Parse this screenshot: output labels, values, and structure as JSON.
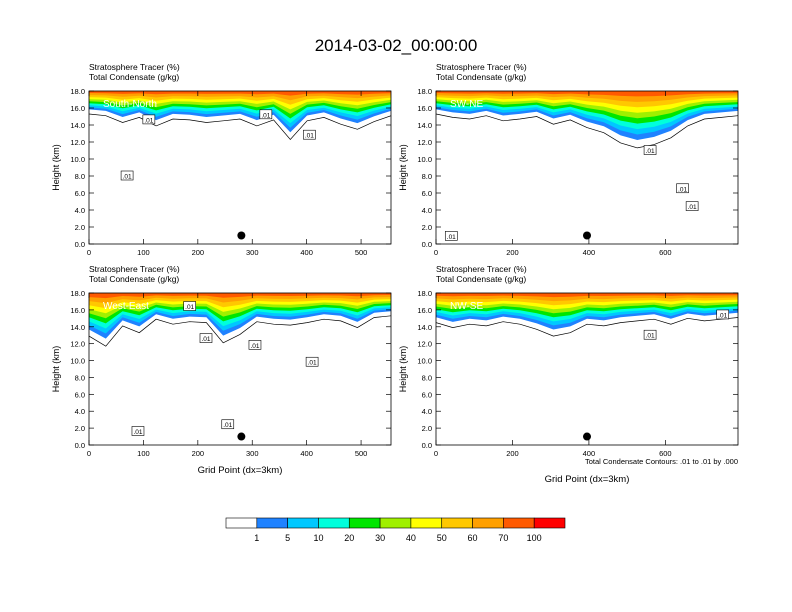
{
  "title": "2014-03-02_00:00:00",
  "shared": {
    "header_line1": "Stratosphere Tracer   (%)",
    "header_line2": "Total Condensate   (g/kg)",
    "ylabel": "Height (km)",
    "xlabel": "Grid Point (dx=3km)",
    "contour_note": "Total Condensate Contours: .01 to .01 by .000",
    "contour_label": ".01"
  },
  "chart_data": [
    {
      "type": "heatmap",
      "name": "South-North",
      "xlim": [
        0,
        555
      ],
      "ylim": [
        0,
        18
      ],
      "xticks": [
        0,
        100,
        200,
        300,
        400,
        500
      ],
      "yticks": [
        0.0,
        2.0,
        4.0,
        6.0,
        8.0,
        10.0,
        12.0,
        14.0,
        16.0,
        18.0
      ],
      "tracer_top_km": [
        15.6,
        15.4,
        14.6,
        15.2,
        14.2,
        15.0,
        14.9,
        14.6,
        14.8,
        15.0,
        14.2,
        14.9,
        12.6,
        14.8,
        15.2,
        14.4,
        13.8,
        14.7,
        15.4
      ],
      "marker": {
        "x": 280,
        "y": 1.0
      },
      "contour_labels": [
        {
          "x": 110,
          "y": 14.6
        },
        {
          "x": 325,
          "y": 15.2
        },
        {
          "x": 405,
          "y": 12.8
        },
        {
          "x": 70,
          "y": 8.0
        }
      ]
    },
    {
      "type": "heatmap",
      "name": "SW-NE",
      "xlim": [
        0,
        790
      ],
      "ylim": [
        0,
        18
      ],
      "xticks": [
        0,
        200,
        400,
        600
      ],
      "yticks": [
        0.0,
        2.0,
        4.0,
        6.0,
        8.0,
        10.0,
        12.0,
        14.0,
        16.0,
        18.0
      ],
      "tracer_top_km": [
        15.6,
        15.2,
        15.0,
        15.4,
        14.8,
        15.0,
        15.3,
        14.4,
        14.9,
        14.0,
        13.4,
        12.2,
        11.6,
        12.0,
        12.8,
        14.2,
        15.0,
        15.2,
        15.4
      ],
      "marker": {
        "x": 395,
        "y": 1.0
      },
      "contour_labels": [
        {
          "x": 560,
          "y": 11.0
        },
        {
          "x": 645,
          "y": 6.5
        },
        {
          "x": 670,
          "y": 4.4
        },
        {
          "x": 40,
          "y": 0.9
        }
      ]
    },
    {
      "type": "heatmap",
      "name": "West-East",
      "xlim": [
        0,
        555
      ],
      "ylim": [
        0,
        18
      ],
      "xticks": [
        0,
        100,
        200,
        300,
        400,
        500
      ],
      "yticks": [
        0.0,
        2.0,
        4.0,
        6.0,
        8.0,
        10.0,
        12.0,
        14.0,
        16.0,
        18.0
      ],
      "tracer_top_km": [
        13.2,
        12.0,
        14.4,
        13.6,
        15.2,
        14.6,
        14.9,
        14.8,
        12.4,
        13.4,
        14.9,
        14.6,
        14.5,
        14.8,
        15.2,
        15.0,
        14.2,
        15.4,
        15.6
      ],
      "marker": {
        "x": 280,
        "y": 1.0
      },
      "contour_labels": [
        {
          "x": 185,
          "y": 16.4
        },
        {
          "x": 215,
          "y": 12.6
        },
        {
          "x": 305,
          "y": 11.8
        },
        {
          "x": 410,
          "y": 9.8
        },
        {
          "x": 255,
          "y": 2.4
        },
        {
          "x": 90,
          "y": 1.6
        }
      ]
    },
    {
      "type": "heatmap",
      "name": "NW-SE",
      "xlim": [
        0,
        790
      ],
      "ylim": [
        0,
        18
      ],
      "xticks": [
        0,
        200,
        400,
        600
      ],
      "yticks": [
        0.0,
        2.0,
        4.0,
        6.0,
        8.0,
        10.0,
        12.0,
        14.0,
        16.0,
        18.0
      ],
      "tracer_top_km": [
        14.8,
        14.2,
        14.6,
        14.4,
        14.9,
        14.6,
        14.0,
        13.2,
        13.6,
        14.6,
        14.4,
        14.8,
        15.0,
        15.2,
        14.6,
        15.3,
        15.0,
        15.2,
        15.4
      ],
      "marker": {
        "x": 395,
        "y": 1.0
      },
      "contour_labels": [
        {
          "x": 560,
          "y": 13.0
        },
        {
          "x": 750,
          "y": 15.4
        }
      ]
    }
  ],
  "legend": {
    "labels": [
      "1",
      "5",
      "10",
      "20",
      "30",
      "40",
      "50",
      "60",
      "70",
      "100"
    ],
    "colors": [
      "#ffffff",
      "#1f82ff",
      "#00c8ff",
      "#00ffdc",
      "#00e600",
      "#a0f000",
      "#ffff00",
      "#ffc800",
      "#ffa000",
      "#ff5a00",
      "#ff0000"
    ]
  }
}
